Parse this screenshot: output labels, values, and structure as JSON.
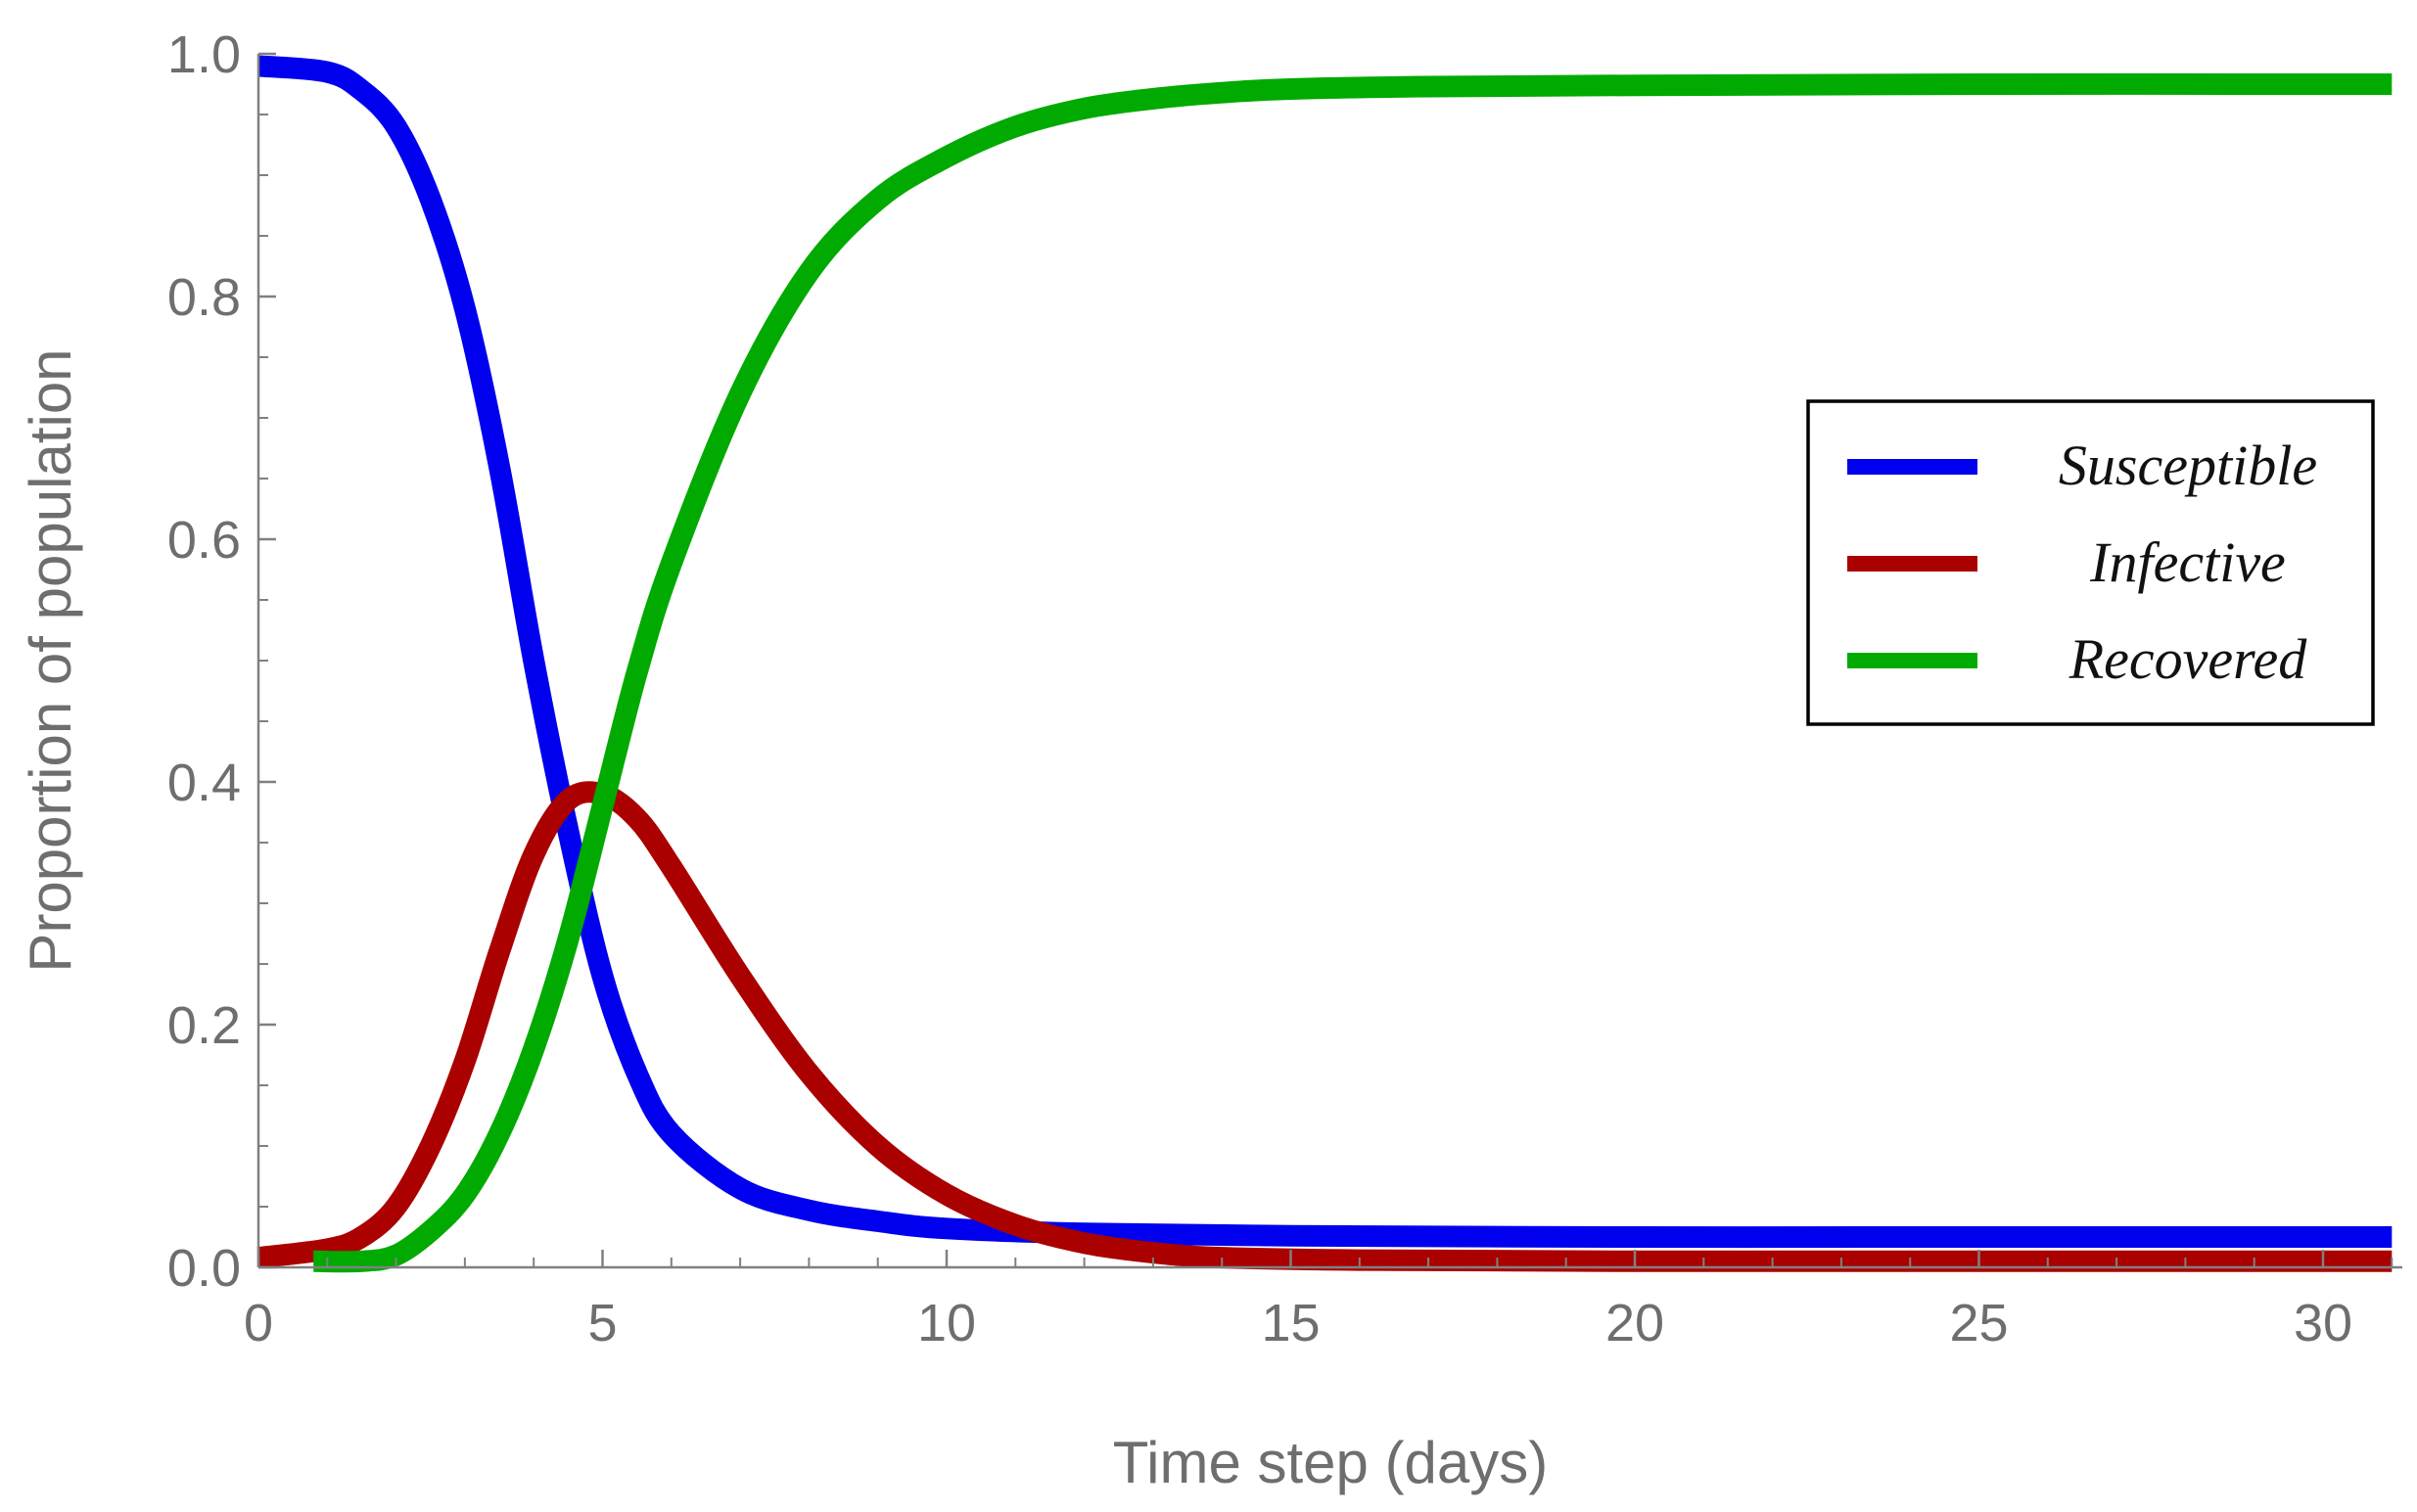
{
  "chart_data": {
    "type": "line",
    "xlabel": "Time step (days)",
    "ylabel": "Proportion of population",
    "xlim": [
      0,
      31
    ],
    "ylim": [
      0,
      1
    ],
    "x_ticks": [
      "0",
      "5",
      "10",
      "15",
      "20",
      "25",
      "30"
    ],
    "y_ticks": [
      "0.0",
      "0.2",
      "0.4",
      "0.6",
      "0.8",
      "1.0"
    ],
    "grid": false,
    "legend_position": "right",
    "series": [
      {
        "name": "Susceptible",
        "color": "#0000ee",
        "x": [
          0,
          1,
          1.5,
          2,
          2.5,
          3,
          3.5,
          4,
          4.5,
          5,
          5.5,
          6,
          7,
          8,
          9,
          10,
          12,
          15,
          20,
          25,
          31
        ],
        "y": [
          0.99,
          0.985,
          0.97,
          0.94,
          0.88,
          0.79,
          0.66,
          0.5,
          0.36,
          0.24,
          0.16,
          0.11,
          0.065,
          0.047,
          0.038,
          0.032,
          0.028,
          0.026,
          0.025,
          0.025,
          0.025
        ]
      },
      {
        "name": "Infective",
        "color": "#aa0000",
        "x": [
          0,
          1,
          1.5,
          2,
          2.5,
          3,
          3.5,
          4,
          4.5,
          5,
          5.5,
          6,
          7,
          8,
          9,
          10,
          11,
          12,
          13,
          14,
          16,
          20,
          25,
          31
        ],
        "y": [
          0.008,
          0.015,
          0.025,
          0.05,
          0.1,
          0.17,
          0.26,
          0.34,
          0.385,
          0.39,
          0.37,
          0.33,
          0.24,
          0.16,
          0.1,
          0.06,
          0.035,
          0.02,
          0.012,
          0.008,
          0.006,
          0.005,
          0.005,
          0.005
        ]
      },
      {
        "name": "Recovered",
        "color": "#00aa00",
        "x": [
          0.8,
          1.5,
          2,
          2.5,
          3,
          3.5,
          4,
          4.5,
          5,
          5.5,
          6,
          7,
          8,
          9,
          10,
          11,
          12,
          13,
          14,
          15,
          17,
          20,
          25,
          31
        ],
        "y": [
          0.005,
          0.005,
          0.01,
          0.03,
          0.06,
          0.11,
          0.18,
          0.27,
          0.38,
          0.49,
          0.58,
          0.72,
          0.82,
          0.88,
          0.915,
          0.94,
          0.955,
          0.963,
          0.968,
          0.971,
          0.973,
          0.974,
          0.975,
          0.975
        ]
      }
    ]
  }
}
